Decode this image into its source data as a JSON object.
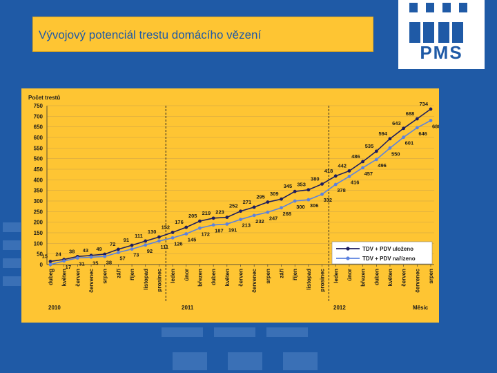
{
  "slide": {
    "title": "Vývojový potenciál trestu domácího vězení"
  },
  "logo": {
    "text": "PMS"
  },
  "colors": {
    "background": "#1f5aa6",
    "title_bg": "#fec533",
    "chart_bg": "#fec533",
    "series_saved": "#1c1c5e",
    "series_ordered": "#5b82e0"
  },
  "chart_data": {
    "type": "line",
    "ylabel": "Počet trestů",
    "xlabel": "Měsíc",
    "ylim": [
      0,
      750
    ],
    "yticks": [
      0,
      50,
      100,
      150,
      200,
      250,
      300,
      350,
      400,
      450,
      500,
      550,
      600,
      650,
      700,
      750
    ],
    "grid": true,
    "legend_position": "bottom-right",
    "categories": [
      "duben",
      "květen",
      "červen",
      "červenec",
      "srpen",
      "září",
      "říjen",
      "listopad",
      "prosinec",
      "leden",
      "únor",
      "březen",
      "duben",
      "květen",
      "červen",
      "červenec",
      "srpen",
      "září",
      "říjen",
      "listopad",
      "prosinec",
      "leden",
      "únor",
      "březen",
      "duben",
      "květen",
      "červen",
      "červenec",
      "srpen"
    ],
    "years": [
      {
        "label": "2010",
        "start_index": 0
      },
      {
        "label": "2011",
        "start_index": 9
      },
      {
        "label": "2012",
        "start_index": 21
      }
    ],
    "year_separators_after": [
      8,
      20
    ],
    "series": [
      {
        "name": "TDV + PDV uloženo",
        "color": "#1c1c5e",
        "values": [
          15,
          24,
          38,
          43,
          49,
          72,
          91,
          111,
          130,
          152,
          176,
          205,
          219,
          223,
          252,
          271,
          295,
          309,
          345,
          353,
          380,
          418,
          442,
          486,
          535,
          594,
          643,
          688,
          734
        ]
      },
      {
        "name": "TDV + PDV nařízeno",
        "color": "#5b82e0",
        "values": [
          0,
          17,
          31,
          35,
          38,
          57,
          73,
          92,
          111,
          126,
          145,
          172,
          187,
          191,
          213,
          232,
          247,
          268,
          300,
          306,
          332,
          378,
          416,
          457,
          496,
          550,
          601,
          646,
          680
        ]
      }
    ]
  }
}
